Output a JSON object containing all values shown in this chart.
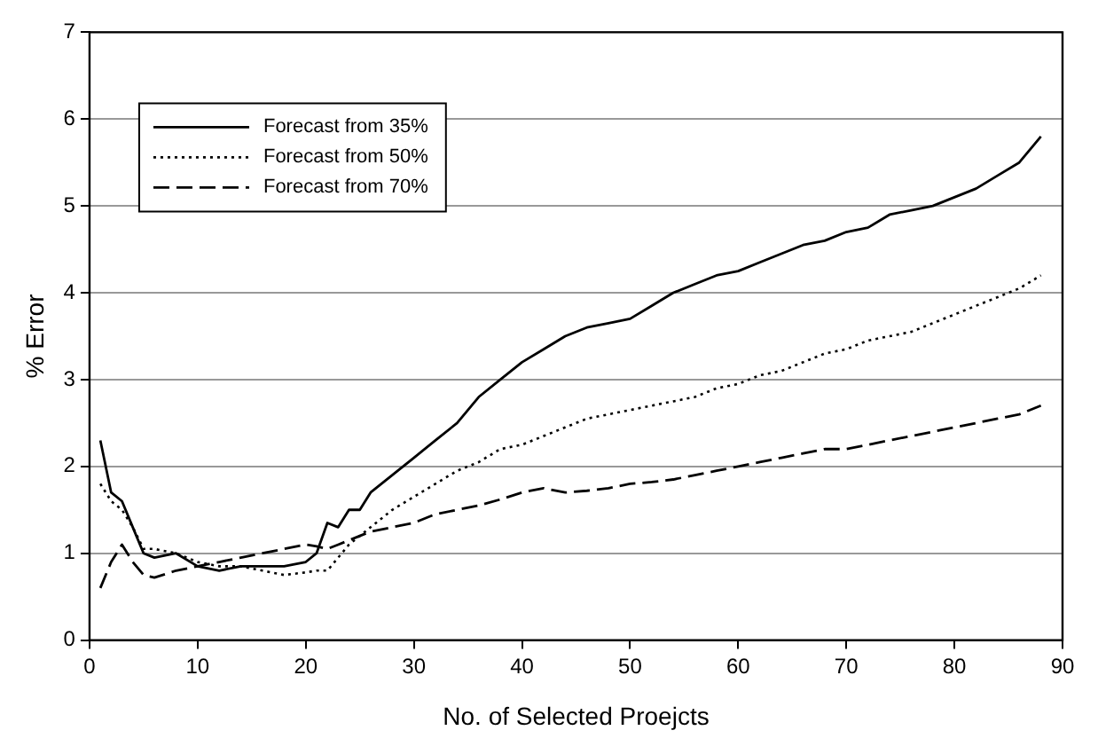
{
  "chart_data": {
    "type": "line",
    "xlabel": "No. of Selected Proejcts",
    "ylabel": "% Error",
    "x": [
      1,
      2,
      3,
      4,
      5,
      6,
      8,
      10,
      12,
      14,
      16,
      18,
      20,
      21,
      22,
      23,
      24,
      25,
      26,
      28,
      30,
      32,
      34,
      36,
      38,
      40,
      42,
      44,
      46,
      48,
      50,
      52,
      54,
      56,
      58,
      60,
      62,
      64,
      66,
      68,
      70,
      72,
      74,
      76,
      78,
      80,
      82,
      84,
      86,
      88
    ],
    "series": [
      {
        "name": "Forecast from 35%",
        "color": "#000000",
        "line_style": "solid",
        "values": [
          2.3,
          1.7,
          1.6,
          1.3,
          1.0,
          0.95,
          1.0,
          0.85,
          0.8,
          0.85,
          0.85,
          0.85,
          0.9,
          1.0,
          1.35,
          1.3,
          1.5,
          1.5,
          1.7,
          1.9,
          2.1,
          2.3,
          2.5,
          2.8,
          3.0,
          3.2,
          3.35,
          3.5,
          3.6,
          3.65,
          3.7,
          3.85,
          4.0,
          4.1,
          4.2,
          4.25,
          4.35,
          4.45,
          4.55,
          4.6,
          4.7,
          4.75,
          4.9,
          4.95,
          5.0,
          5.1,
          5.2,
          5.35,
          5.5,
          5.8
        ]
      },
      {
        "name": "Forecast from 50%",
        "color": "#000000",
        "line_style": "dotted",
        "values": [
          1.8,
          1.6,
          1.5,
          1.3,
          1.05,
          1.05,
          1.0,
          0.9,
          0.85,
          0.85,
          0.8,
          0.75,
          0.78,
          0.8,
          0.8,
          0.95,
          1.1,
          1.2,
          1.3,
          1.5,
          1.65,
          1.8,
          1.95,
          2.05,
          2.2,
          2.25,
          2.35,
          2.45,
          2.55,
          2.6,
          2.65,
          2.7,
          2.75,
          2.8,
          2.9,
          2.95,
          3.05,
          3.1,
          3.2,
          3.3,
          3.35,
          3.45,
          3.5,
          3.55,
          3.65,
          3.75,
          3.85,
          3.95,
          4.05,
          4.2
        ]
      },
      {
        "name": "Forecast from 70%",
        "color": "#000000",
        "line_style": "dashed",
        "values": [
          0.6,
          0.9,
          1.1,
          0.9,
          0.75,
          0.72,
          0.8,
          0.85,
          0.9,
          0.95,
          1.0,
          1.05,
          1.1,
          1.08,
          1.05,
          1.1,
          1.15,
          1.2,
          1.25,
          1.3,
          1.35,
          1.45,
          1.5,
          1.55,
          1.62,
          1.7,
          1.75,
          1.7,
          1.72,
          1.75,
          1.8,
          1.82,
          1.85,
          1.9,
          1.95,
          2.0,
          2.05,
          2.1,
          2.15,
          2.2,
          2.2,
          2.25,
          2.3,
          2.35,
          2.4,
          2.45,
          2.5,
          2.55,
          2.6,
          2.7
        ]
      }
    ],
    "xlim": [
      0,
      90
    ],
    "xticks": [
      0,
      10,
      20,
      30,
      40,
      50,
      60,
      70,
      80,
      90
    ],
    "ylim": [
      0,
      7
    ],
    "yticks": [
      0,
      1,
      2,
      3,
      4,
      5,
      6,
      7
    ],
    "grid": "y",
    "legend": "top left",
    "marker": "none"
  }
}
